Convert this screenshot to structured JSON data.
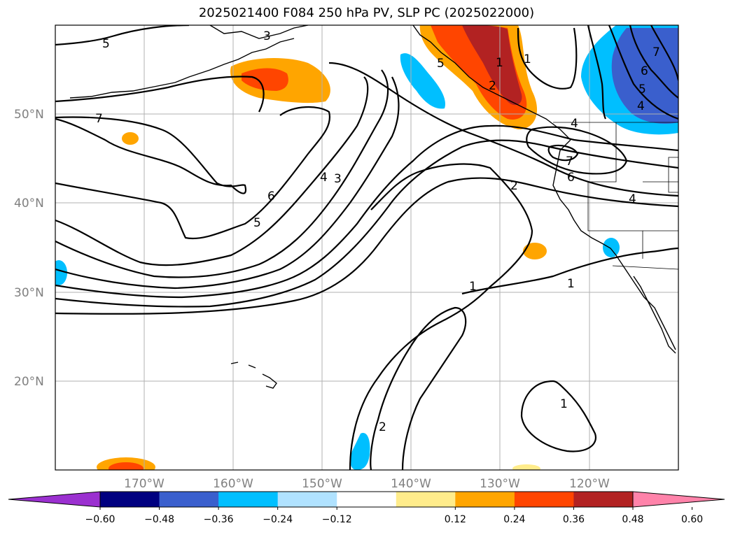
{
  "title": "2025021400 F084 250 hPa PV, SLP PC (2025022000)",
  "map": {
    "lat_labels": [
      "50°N",
      "40°N",
      "30°N",
      "20°N"
    ],
    "lon_labels": [
      "170°W",
      "160°W",
      "150°W",
      "140°W",
      "130°W",
      "120°W"
    ],
    "contour_labels": [
      "5",
      "3",
      "7",
      "6",
      "5",
      "4",
      "3",
      "2",
      "1",
      "1",
      "2",
      "1",
      "5",
      "1",
      "4",
      "6",
      "5",
      "4",
      "7",
      "6",
      "7",
      "4",
      "1",
      "2"
    ]
  },
  "colorbar": {
    "ticks": [
      "−0.60",
      "−0.48",
      "−0.36",
      "−0.24",
      "−0.12",
      "0.12",
      "0.24",
      "0.36",
      "0.48",
      "0.60"
    ],
    "colors": [
      "#9b30d0",
      "#000080",
      "#3a5fcd",
      "#00bfff",
      "#b0e2ff",
      "#ffffff",
      "#ffec8b",
      "#ffa500",
      "#ff4500",
      "#b22222",
      "#ff83aa"
    ]
  }
}
